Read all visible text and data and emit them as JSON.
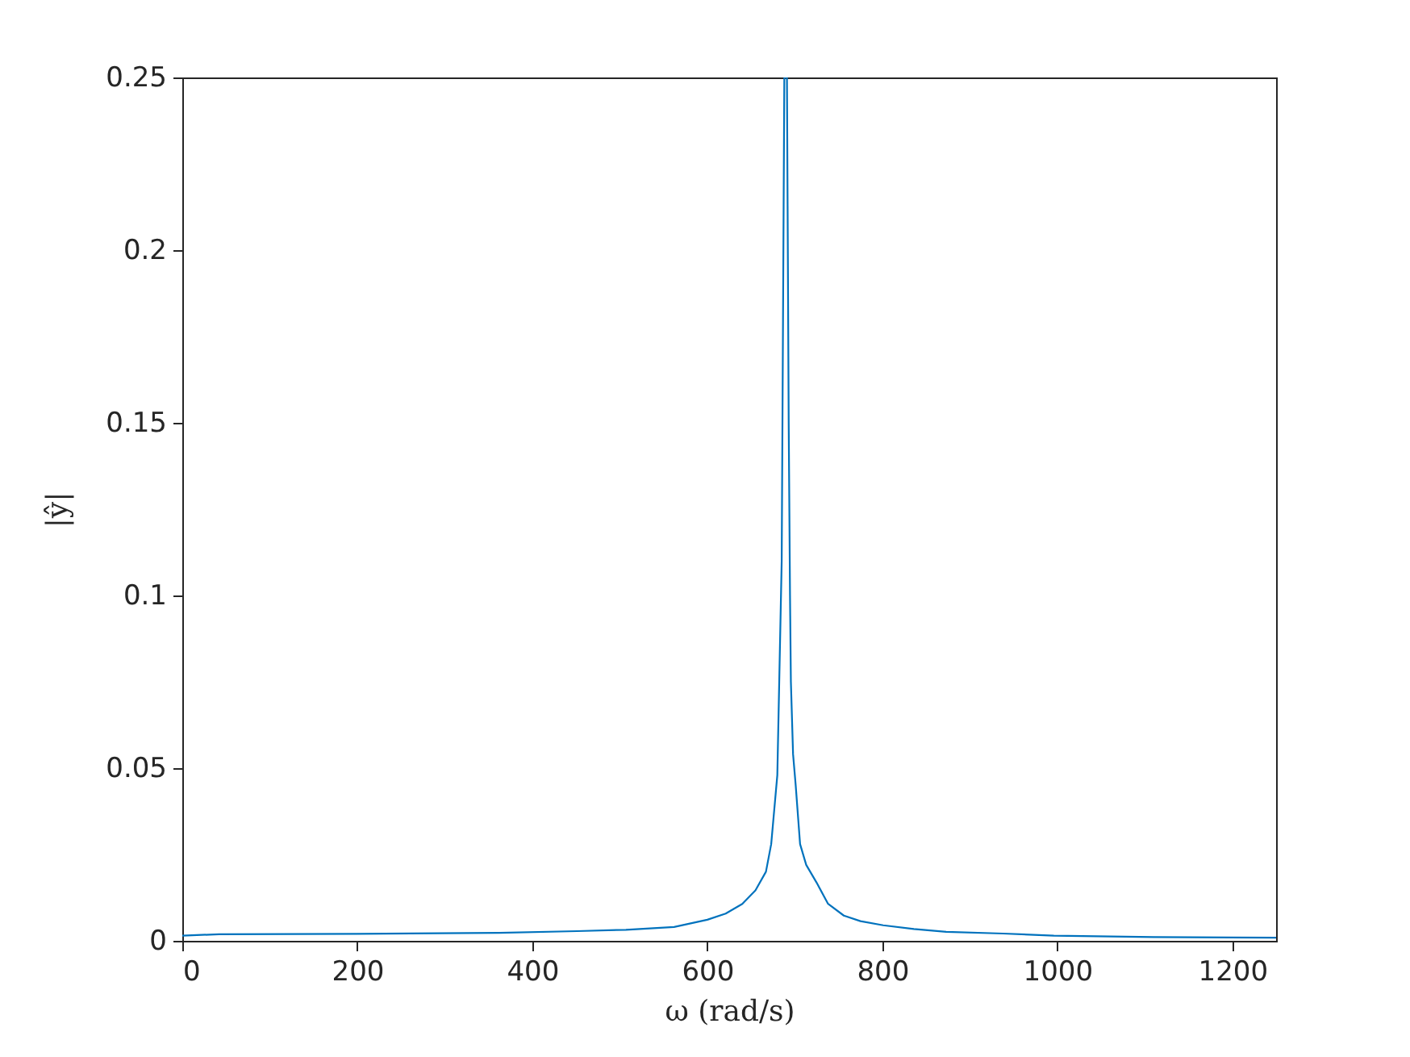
{
  "chart_data": {
    "type": "line",
    "xlabel": "ω (rad/s)",
    "ylabel": "|ŷ|",
    "x": [
      0,
      42,
      200,
      362,
      451,
      507,
      562,
      600,
      621,
      640,
      655,
      667,
      673,
      680,
      685,
      686.5,
      688,
      691,
      693,
      694.5,
      695.5,
      698,
      701,
      706,
      713,
      725,
      738,
      756,
      775,
      801,
      836,
      873,
      938,
      996,
      1110,
      1250
    ],
    "series": [
      {
        "color": "#0072bd",
        "values": [
          0.0015,
          0.0019,
          0.002,
          0.0023,
          0.0028,
          0.0032,
          0.004,
          0.0061,
          0.0079,
          0.0107,
          0.0146,
          0.02,
          0.028,
          0.048,
          0.11,
          0.18,
          0.25,
          0.25,
          0.15,
          0.1,
          0.075,
          0.054,
          0.045,
          0.028,
          0.022,
          0.0168,
          0.0107,
          0.0073,
          0.0057,
          0.0045,
          0.0034,
          0.0026,
          0.0021,
          0.0015,
          0.0011,
          0.0009
        ]
      }
    ],
    "xlim": [
      0,
      1250
    ],
    "ylim": [
      0,
      0.25
    ],
    "xticks": [
      0,
      200,
      400,
      600,
      800,
      1000,
      1200
    ],
    "yticks": [
      0,
      0.05,
      0.1,
      0.15,
      0.2,
      0.25
    ],
    "line_style": "solid"
  }
}
